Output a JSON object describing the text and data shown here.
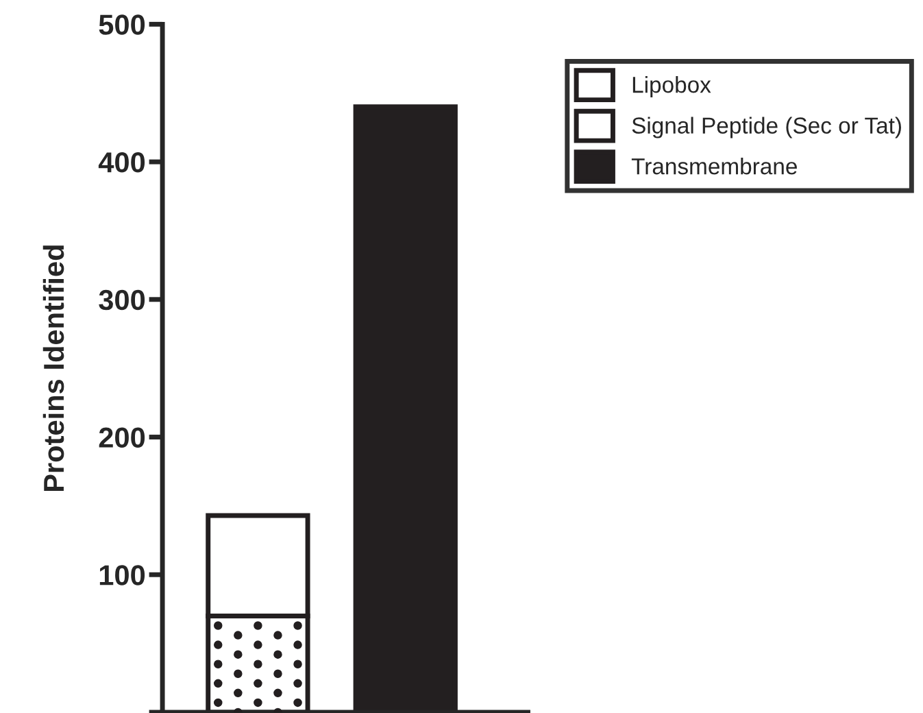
{
  "chart_data": {
    "type": "bar",
    "ylabel": "Proteins Identified",
    "categories": [
      null,
      null
    ],
    "stacked": true,
    "series": [
      {
        "name": "Lipobox",
        "color": "#ffffff",
        "values": [
          70,
          null
        ]
      },
      {
        "name": "Signal Peptide (Sec or Tat)",
        "color": "#ffffff",
        "values": [
          73,
          null
        ]
      },
      {
        "name": "Transmembrane",
        "color": "#231f20",
        "values": [
          null,
          440
        ]
      }
    ],
    "ylim": [
      0,
      500
    ],
    "yticks": [
      {
        "value": 0,
        "label": null
      },
      100,
      200,
      300,
      400,
      500
    ],
    "grid": false,
    "legend": "top right"
  }
}
